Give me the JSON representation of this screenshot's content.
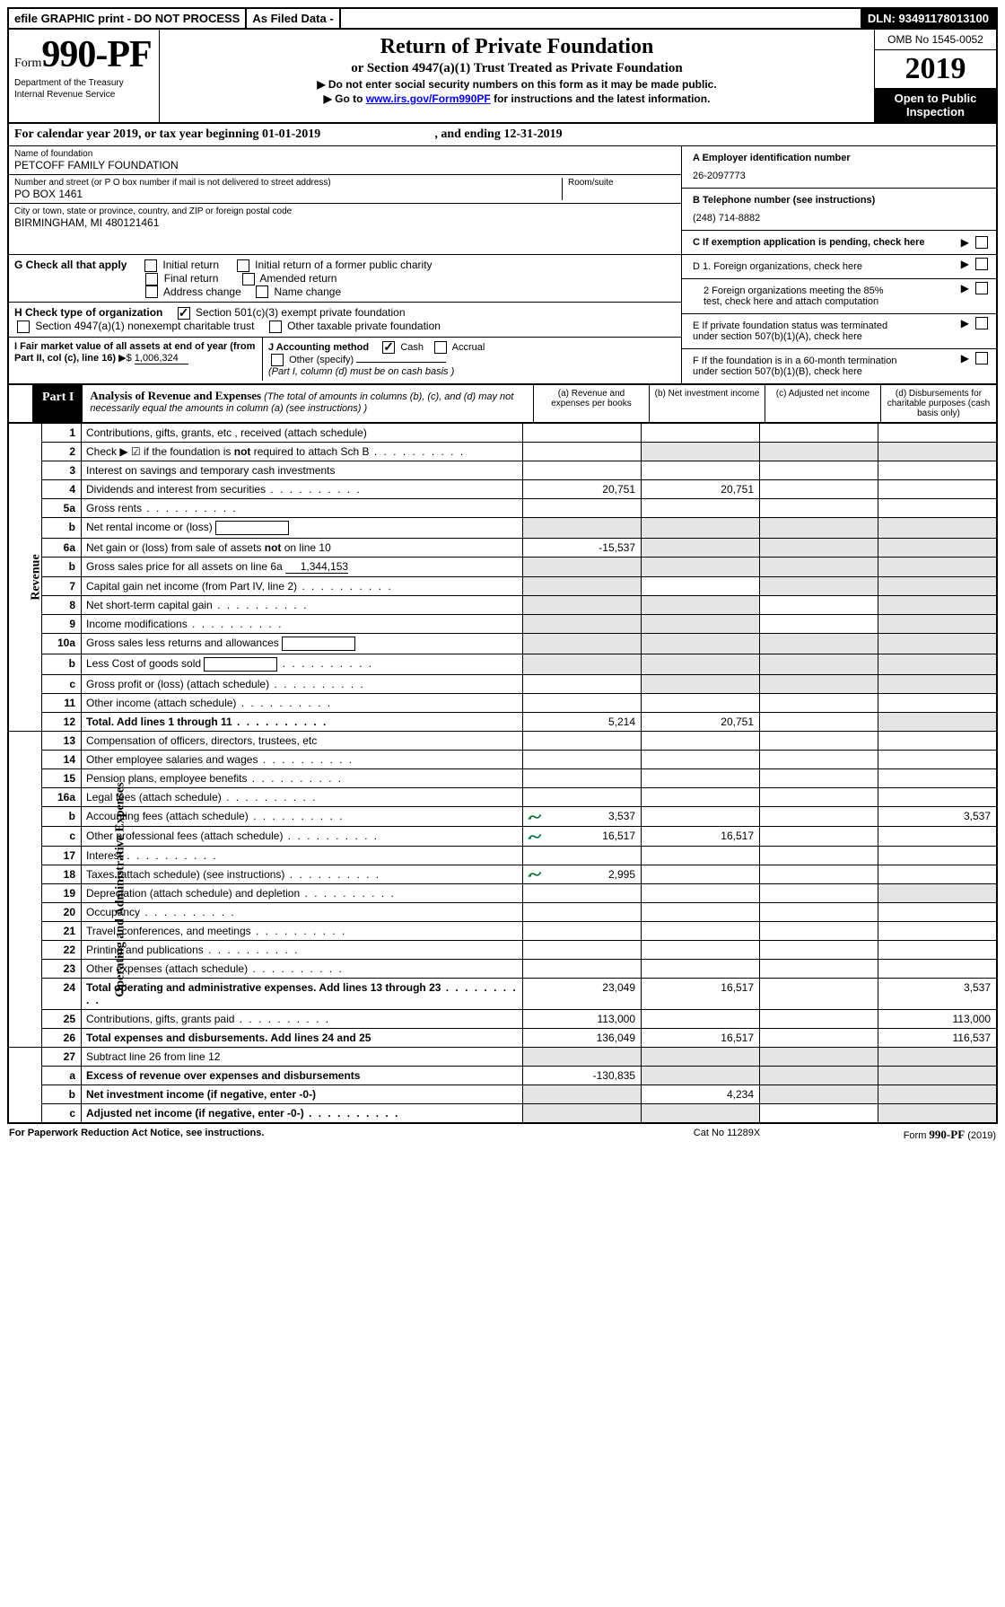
{
  "topbar": {
    "efile": "efile GRAPHIC print - DO NOT PROCESS",
    "asfiled": "As Filed Data -",
    "dln_label": "DLN:",
    "dln": "93491178013100"
  },
  "header": {
    "form_prefix": "Form",
    "form_number": "990-PF",
    "dept1": "Department of the Treasury",
    "dept2": "Internal Revenue Service",
    "title": "Return of Private Foundation",
    "subtitle": "or Section 4947(a)(1) Trust Treated as Private Foundation",
    "note1": "▶ Do not enter social security numbers on this form as it may be made public.",
    "note2_pre": "▶ Go to ",
    "note2_link": "www.irs.gov/Form990PF",
    "note2_post": " for instructions and the latest information.",
    "omb": "OMB No 1545-0052",
    "year": "2019",
    "inspect": "Open to Public Inspection"
  },
  "calyear": {
    "text_pre": "For calendar year 2019, or tax year beginning ",
    "begin": "01-01-2019",
    "text_mid": ", and ending ",
    "end": "12-31-2019"
  },
  "entity": {
    "name_label": "Name of foundation",
    "name": "PETCOFF FAMILY FOUNDATION",
    "addr_label": "Number and street (or P O  box number if mail is not delivered to street address)",
    "addr": "PO BOX 1461",
    "room_label": "Room/suite",
    "city_label": "City or town, state or province, country, and ZIP or foreign postal code",
    "city": "BIRMINGHAM, MI  480121461",
    "a_label": "A Employer identification number",
    "a_val": "26-2097773",
    "b_label": "B Telephone number (see instructions)",
    "b_val": "(248) 714-8882",
    "c_label": "C If exemption application is pending, check here"
  },
  "g": {
    "label": "G Check all that apply",
    "initial": "Initial return",
    "initial_former": "Initial return of a former public charity",
    "final": "Final return",
    "amended": "Amended return",
    "addrchg": "Address change",
    "namechg": "Name change"
  },
  "h": {
    "label": "H Check type of organization",
    "opt1": "Section 501(c)(3) exempt private foundation",
    "opt2": "Section 4947(a)(1) nonexempt charitable trust",
    "opt3": "Other taxable private foundation"
  },
  "d": {
    "d1": "D 1. Foreign organizations, check here",
    "d2a": "2 Foreign organizations meeting the 85%",
    "d2b": "test, check here and attach computation",
    "e1": "E  If private foundation status was terminated",
    "e2": "under section 507(b)(1)(A), check here",
    "f1": "F  If the foundation is in a 60-month termination",
    "f2": "under section 507(b)(1)(B), check here"
  },
  "i": {
    "label": "I Fair market value of all assets at end of year (from Part II, col  (c), line 16)",
    "arrow": "▶$",
    "val": "1,006,324"
  },
  "j": {
    "label": "J Accounting method",
    "cash": "Cash",
    "accrual": "Accrual",
    "other": "Other (specify)",
    "note": "(Part I, column (d) must be on cash basis )"
  },
  "part1": {
    "tag": "Part I",
    "title": "Analysis of Revenue and Expenses",
    "title_note": " (The total of amounts in columns (b), (c), and (d) may not necessarily equal the amounts in column (a) (see instructions) )",
    "col_a": "(a) Revenue and expenses per books",
    "col_b": "(b) Net investment income",
    "col_c": "(c) Adjusted net income",
    "col_d": "(d) Disbursements for charitable purposes (cash basis only)"
  },
  "sections": {
    "revenue": "Revenue",
    "opex": "Operating and Administrative Expenses"
  },
  "rows": [
    {
      "n": "1",
      "d": "Contributions, gifts, grants, etc , received (attach schedule)",
      "a": "",
      "b": "",
      "c": "",
      "dd": ""
    },
    {
      "n": "2",
      "d": "Check ▶ ☑ if the foundation is not required to attach Sch B",
      "a": "",
      "b": "",
      "c": "",
      "dd": "",
      "grey_bcd": true,
      "dots": true
    },
    {
      "n": "3",
      "d": "Interest on savings and temporary cash investments",
      "a": "",
      "b": "",
      "c": "",
      "dd": ""
    },
    {
      "n": "4",
      "d": "Dividends and interest from securities",
      "a": "20,751",
      "b": "20,751",
      "c": "",
      "dd": "",
      "dots": true
    },
    {
      "n": "5a",
      "d": "Gross rents",
      "a": "",
      "b": "",
      "c": "",
      "dd": "",
      "dots": true
    },
    {
      "n": "b",
      "d": "Net rental income or (loss)",
      "a": "",
      "b": "",
      "c": "",
      "dd": "",
      "inset": true,
      "grey_abcd": true
    },
    {
      "n": "6a",
      "d": "Net gain or (loss) from sale of assets not on line 10",
      "a": "-15,537",
      "b": "",
      "c": "",
      "dd": "",
      "grey_bcd": true
    },
    {
      "n": "b",
      "d": "Gross sales price for all assets on line 6a",
      "a": "",
      "b": "",
      "c": "",
      "dd": "",
      "inset": true,
      "grey_abcd": true,
      "inset_val": "1,344,153"
    },
    {
      "n": "7",
      "d": "Capital gain net income (from Part IV, line 2)",
      "a": "",
      "b": "",
      "c": "",
      "dd": "",
      "dots": true,
      "grey_a": true,
      "grey_cd": true
    },
    {
      "n": "8",
      "d": "Net short-term capital gain",
      "a": "",
      "b": "",
      "c": "",
      "dd": "",
      "dots": true,
      "grey_ab": true,
      "grey_d": true
    },
    {
      "n": "9",
      "d": "Income modifications",
      "a": "",
      "b": "",
      "c": "",
      "dd": "",
      "dots": true,
      "grey_ab": true,
      "grey_d": true
    },
    {
      "n": "10a",
      "d": "Gross sales less returns and allowances",
      "a": "",
      "b": "",
      "c": "",
      "dd": "",
      "inset": true,
      "grey_abcd": true
    },
    {
      "n": "b",
      "d": "Less  Cost of goods sold",
      "a": "",
      "b": "",
      "c": "",
      "dd": "",
      "inset": true,
      "grey_abcd": true,
      "dots": true
    },
    {
      "n": "c",
      "d": "Gross profit or (loss) (attach schedule)",
      "a": "",
      "b": "",
      "c": "",
      "dd": "",
      "dots": true,
      "grey_bcd": true
    },
    {
      "n": "11",
      "d": "Other income (attach schedule)",
      "a": "",
      "b": "",
      "c": "",
      "dd": "",
      "dots": true
    },
    {
      "n": "12",
      "d": "Total. Add lines 1 through 11",
      "a": "5,214",
      "b": "20,751",
      "c": "",
      "dd": "",
      "dots": true,
      "bold": true,
      "grey_d": true
    }
  ],
  "rows2": [
    {
      "n": "13",
      "d": "Compensation of officers, directors, trustees, etc",
      "a": "",
      "b": "",
      "c": "",
      "dd": ""
    },
    {
      "n": "14",
      "d": "Other employee salaries and wages",
      "a": "",
      "b": "",
      "c": "",
      "dd": "",
      "dots": true
    },
    {
      "n": "15",
      "d": "Pension plans, employee benefits",
      "a": "",
      "b": "",
      "c": "",
      "dd": "",
      "dots": true
    },
    {
      "n": "16a",
      "d": "Legal fees (attach schedule)",
      "a": "",
      "b": "",
      "c": "",
      "dd": "",
      "dots": true
    },
    {
      "n": "b",
      "d": "Accounting fees (attach schedule)",
      "a": "3,537",
      "b": "",
      "c": "",
      "dd": "3,537",
      "dots": true,
      "icon": true
    },
    {
      "n": "c",
      "d": "Other professional fees (attach schedule)",
      "a": "16,517",
      "b": "16,517",
      "c": "",
      "dd": "",
      "dots": true,
      "icon": true
    },
    {
      "n": "17",
      "d": "Interest",
      "a": "",
      "b": "",
      "c": "",
      "dd": "",
      "dots": true
    },
    {
      "n": "18",
      "d": "Taxes (attach schedule) (see instructions)",
      "a": "2,995",
      "b": "",
      "c": "",
      "dd": "",
      "dots": true,
      "icon": true
    },
    {
      "n": "19",
      "d": "Depreciation (attach schedule) and depletion",
      "a": "",
      "b": "",
      "c": "",
      "dd": "",
      "dots": true,
      "grey_d": true
    },
    {
      "n": "20",
      "d": "Occupancy",
      "a": "",
      "b": "",
      "c": "",
      "dd": "",
      "dots": true
    },
    {
      "n": "21",
      "d": "Travel, conferences, and meetings",
      "a": "",
      "b": "",
      "c": "",
      "dd": "",
      "dots": true
    },
    {
      "n": "22",
      "d": "Printing and publications",
      "a": "",
      "b": "",
      "c": "",
      "dd": "",
      "dots": true
    },
    {
      "n": "23",
      "d": "Other expenses (attach schedule)",
      "a": "",
      "b": "",
      "c": "",
      "dd": "",
      "dots": true
    },
    {
      "n": "24",
      "d": "Total operating and administrative expenses. Add lines 13 through 23",
      "a": "23,049",
      "b": "16,517",
      "c": "",
      "dd": "3,537",
      "dots": true,
      "bold": true
    },
    {
      "n": "25",
      "d": "Contributions, gifts, grants paid",
      "a": "113,000",
      "b": "",
      "c": "",
      "dd": "113,000",
      "dots": true
    },
    {
      "n": "26",
      "d": "Total expenses and disbursements. Add lines 24 and 25",
      "a": "136,049",
      "b": "16,517",
      "c": "",
      "dd": "116,537",
      "bold": true
    }
  ],
  "rows3": [
    {
      "n": "27",
      "d": "Subtract line 26 from line 12",
      "a": "",
      "b": "",
      "c": "",
      "dd": "",
      "grey_abcd": true
    },
    {
      "n": "a",
      "d": "Excess of revenue over expenses and disbursements",
      "a": "-130,835",
      "b": "",
      "c": "",
      "dd": "",
      "bold": true,
      "grey_bcd": true
    },
    {
      "n": "b",
      "d": "Net investment income (if negative, enter -0-)",
      "a": "",
      "b": "4,234",
      "c": "",
      "dd": "",
      "bold": true,
      "grey_a": true,
      "grey_cd": true
    },
    {
      "n": "c",
      "d": "Adjusted net income (if negative, enter -0-)",
      "a": "",
      "b": "",
      "c": "",
      "dd": "",
      "bold": true,
      "dots": true,
      "grey_ab": true,
      "grey_d": true
    }
  ],
  "footer": {
    "left": "For Paperwork Reduction Act Notice, see instructions.",
    "center": "Cat No  11289X",
    "right_pre": "Form ",
    "right_form": "990-PF",
    "right_post": " (2019)"
  }
}
